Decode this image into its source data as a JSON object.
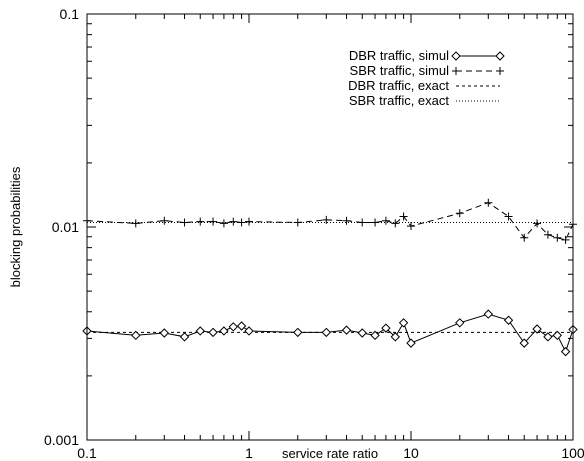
{
  "chart_data": {
    "type": "line",
    "xlabel": "service rate ratio",
    "ylabel": "blocking probabilities",
    "xscale": "log",
    "yscale": "log",
    "xlim": [
      0.1,
      100
    ],
    "ylim": [
      0.001,
      0.1
    ],
    "x_ticks": [
      0.1,
      1,
      10,
      100
    ],
    "x_tick_labels": [
      "0.1",
      "1",
      "10",
      "100"
    ],
    "y_ticks": [
      0.001,
      0.01,
      0.1
    ],
    "y_tick_labels": [
      "0.001",
      "0.01",
      "0.1"
    ],
    "legend_position": "top-right",
    "series": [
      {
        "name": "DBR traffic, simul",
        "style": "solid",
        "marker": "diamond",
        "x": [
          0.1,
          0.2,
          0.3,
          0.4,
          0.5,
          0.6,
          0.7,
          0.8,
          0.9,
          1,
          2,
          3,
          4,
          5,
          6,
          7,
          8,
          9,
          10,
          20,
          30,
          40,
          50,
          60,
          70,
          80,
          90,
          100
        ],
        "y": [
          0.00325,
          0.0031,
          0.00318,
          0.00305,
          0.00325,
          0.0032,
          0.00325,
          0.0034,
          0.00343,
          0.00325,
          0.0032,
          0.0032,
          0.00328,
          0.00318,
          0.0031,
          0.00335,
          0.00305,
          0.00355,
          0.00285,
          0.00355,
          0.0039,
          0.00365,
          0.00285,
          0.00332,
          0.00305,
          0.0031,
          0.0026,
          0.0033
        ]
      },
      {
        "name": "SBR traffic, simul",
        "style": "dashed",
        "marker": "plus",
        "x": [
          0.1,
          0.2,
          0.3,
          0.4,
          0.5,
          0.6,
          0.7,
          0.8,
          0.9,
          1,
          2,
          3,
          4,
          5,
          6,
          7,
          8,
          9,
          10,
          20,
          30,
          40,
          50,
          60,
          70,
          80,
          90,
          100
        ],
        "y": [
          0.0107,
          0.0104,
          0.0107,
          0.0105,
          0.0106,
          0.0106,
          0.0104,
          0.0106,
          0.0105,
          0.0106,
          0.0105,
          0.0108,
          0.0107,
          0.0105,
          0.0105,
          0.0107,
          0.0104,
          0.0112,
          0.0101,
          0.0116,
          0.013,
          0.0112,
          0.0089,
          0.0104,
          0.0092,
          0.0089,
          0.0087,
          0.0103
        ]
      },
      {
        "name": "DBR traffic, exact",
        "style": "dotted-short",
        "marker": "none",
        "x": [
          0.1,
          100
        ],
        "y": [
          0.0032,
          0.0032
        ]
      },
      {
        "name": "SBR traffic, exact",
        "style": "dotted-fine",
        "marker": "none",
        "x": [
          0.1,
          100
        ],
        "y": [
          0.0105,
          0.0105
        ]
      }
    ]
  }
}
